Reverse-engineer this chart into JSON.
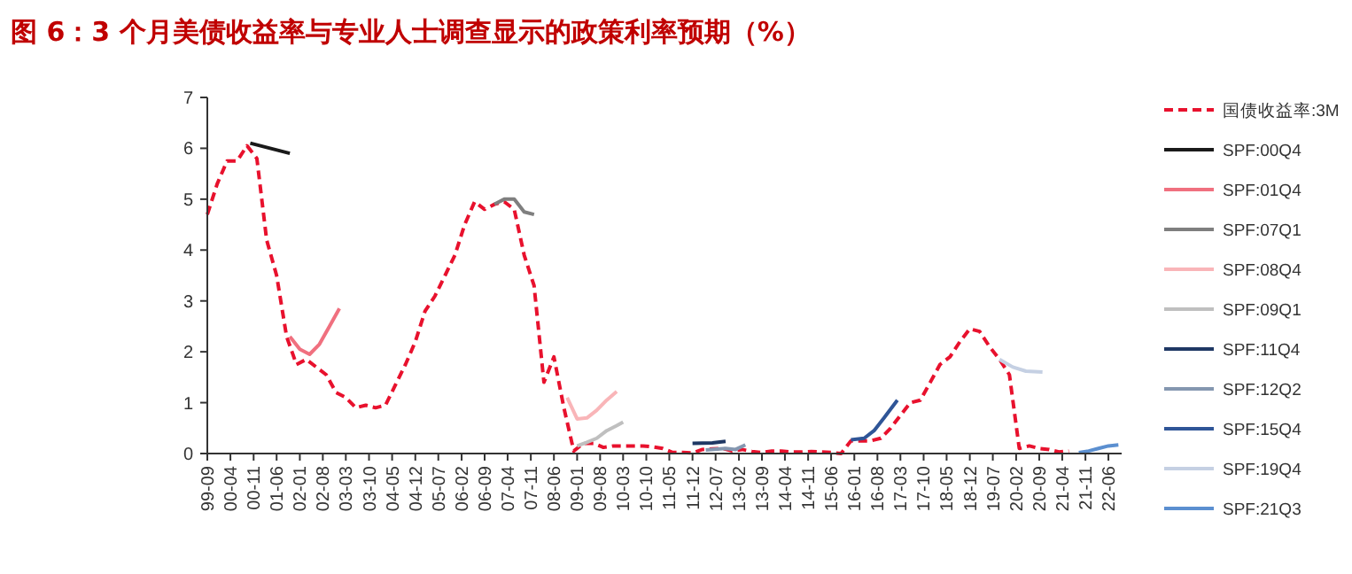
{
  "chart_data": {
    "type": "line",
    "title": "图 6：3 个月美债收益率与专业人士调查显示的政策利率预期（%）",
    "legend": "right",
    "grid": false,
    "marker": "none",
    "xlim": [
      "1999-09",
      "2022-10"
    ],
    "ylim": [
      0,
      7
    ],
    "yticks": [
      0,
      1,
      2,
      3,
      4,
      5,
      6,
      7
    ],
    "xticks": [
      {
        "value": "1999-09",
        "label": "99-09"
      },
      {
        "value": "2000-04",
        "label": "00-04"
      },
      {
        "value": "2000-11",
        "label": "00-11"
      },
      {
        "value": "2001-06",
        "label": "01-06"
      },
      {
        "value": "2002-01",
        "label": "02-01"
      },
      {
        "value": "2002-08",
        "label": "02-08"
      },
      {
        "value": "2003-03",
        "label": "03-03"
      },
      {
        "value": "2003-10",
        "label": "03-10"
      },
      {
        "value": "2004-05",
        "label": "04-05"
      },
      {
        "value": "2004-12",
        "label": "04-12"
      },
      {
        "value": "2005-07",
        "label": "05-07"
      },
      {
        "value": "2006-02",
        "label": "06-02"
      },
      {
        "value": "2006-09",
        "label": "06-09"
      },
      {
        "value": "2007-04",
        "label": "07-04"
      },
      {
        "value": "2007-11",
        "label": "07-11"
      },
      {
        "value": "2008-06",
        "label": "08-06"
      },
      {
        "value": "2009-01",
        "label": "09-01"
      },
      {
        "value": "2009-08",
        "label": "09-08"
      },
      {
        "value": "2010-03",
        "label": "10-03"
      },
      {
        "value": "2010-10",
        "label": "10-10"
      },
      {
        "value": "2011-05",
        "label": "11-05"
      },
      {
        "value": "2011-12",
        "label": "11-12"
      },
      {
        "value": "2012-07",
        "label": "12-07"
      },
      {
        "value": "2013-02",
        "label": "13-02"
      },
      {
        "value": "2013-09",
        "label": "13-09"
      },
      {
        "value": "2014-04",
        "label": "14-04"
      },
      {
        "value": "2014-11",
        "label": "14-11"
      },
      {
        "value": "2015-06",
        "label": "15-06"
      },
      {
        "value": "2016-01",
        "label": "16-01"
      },
      {
        "value": "2016-08",
        "label": "16-08"
      },
      {
        "value": "2017-03",
        "label": "17-03"
      },
      {
        "value": "2017-10",
        "label": "17-10"
      },
      {
        "value": "2018-05",
        "label": "18-05"
      },
      {
        "value": "2018-12",
        "label": "18-12"
      },
      {
        "value": "2019-07",
        "label": "19-07"
      },
      {
        "value": "2020-02",
        "label": "20-02"
      },
      {
        "value": "2020-09",
        "label": "20-09"
      },
      {
        "value": "2021-04",
        "label": "21-04"
      },
      {
        "value": "2021-11",
        "label": "21-11"
      },
      {
        "value": "2022-06",
        "label": "22-06"
      }
    ],
    "series": [
      {
        "name": "国债收益率:3M",
        "color": "#e8112d",
        "line_style": "dashed",
        "x": [
          "1999-09",
          "1999-12",
          "2000-03",
          "2000-06",
          "2000-09",
          "2000-12",
          "2001-03",
          "2001-06",
          "2001-09",
          "2001-12",
          "2002-03",
          "2002-06",
          "2002-09",
          "2002-12",
          "2003-03",
          "2003-06",
          "2003-09",
          "2003-12",
          "2004-03",
          "2004-06",
          "2004-09",
          "2004-12",
          "2005-03",
          "2005-06",
          "2005-09",
          "2005-12",
          "2006-03",
          "2006-06",
          "2006-09",
          "2006-12",
          "2007-03",
          "2007-06",
          "2007-09",
          "2007-12",
          "2008-03",
          "2008-06",
          "2008-09",
          "2008-12",
          "2009-03",
          "2009-06",
          "2009-09",
          "2009-12",
          "2010-03",
          "2010-06",
          "2010-09",
          "2010-12",
          "2011-03",
          "2011-06",
          "2011-09",
          "2011-12",
          "2012-03",
          "2012-06",
          "2012-09",
          "2012-12",
          "2013-03",
          "2013-06",
          "2013-09",
          "2013-12",
          "2014-03",
          "2014-06",
          "2014-09",
          "2014-12",
          "2015-03",
          "2015-06",
          "2015-09",
          "2015-12",
          "2016-03",
          "2016-06",
          "2016-09",
          "2016-12",
          "2017-03",
          "2017-06",
          "2017-09",
          "2017-12",
          "2018-03",
          "2018-06",
          "2018-09",
          "2018-12",
          "2019-03",
          "2019-06",
          "2019-09",
          "2019-12",
          "2020-03",
          "2020-06",
          "2020-09",
          "2020-12",
          "2021-03",
          "2021-06"
        ],
        "values": [
          4.7,
          5.3,
          5.75,
          5.75,
          6.05,
          5.8,
          4.2,
          3.5,
          2.3,
          1.75,
          1.85,
          1.7,
          1.55,
          1.2,
          1.1,
          0.9,
          0.95,
          0.9,
          0.95,
          1.35,
          1.75,
          2.2,
          2.8,
          3.1,
          3.5,
          3.9,
          4.5,
          4.95,
          4.8,
          4.9,
          4.95,
          4.8,
          3.9,
          3.3,
          1.4,
          1.9,
          0.9,
          0.05,
          0.2,
          0.2,
          0.12,
          0.15,
          0.15,
          0.15,
          0.15,
          0.13,
          0.1,
          0.02,
          0.02,
          0.01,
          0.08,
          0.09,
          0.1,
          0.05,
          0.08,
          0.04,
          0.02,
          0.05,
          0.05,
          0.03,
          0.03,
          0.04,
          0.03,
          0.02,
          0.0,
          0.25,
          0.25,
          0.25,
          0.3,
          0.5,
          0.75,
          1.0,
          1.05,
          1.4,
          1.75,
          1.9,
          2.2,
          2.45,
          2.4,
          2.1,
          1.85,
          1.55,
          0.1,
          0.15,
          0.1,
          0.08,
          0.03,
          0.05
        ]
      },
      {
        "name": "SPF:00Q4",
        "color": "#1a1a1a",
        "x": [
          "2000-10",
          "2001-04",
          "2001-10"
        ],
        "values": [
          6.1,
          6.0,
          5.9
        ]
      },
      {
        "name": "SPF:01Q4",
        "color": "#f0707f",
        "x": [
          "2001-10",
          "2002-01",
          "2002-04",
          "2002-07",
          "2002-10",
          "2003-01"
        ],
        "values": [
          2.3,
          2.05,
          1.95,
          2.15,
          2.5,
          2.85
        ]
      },
      {
        "name": "SPF:07Q1",
        "color": "#7f7f7f",
        "x": [
          "2006-12",
          "2007-03",
          "2007-06",
          "2007-09",
          "2007-12"
        ],
        "values": [
          4.9,
          5.0,
          5.0,
          4.75,
          4.7
        ]
      },
      {
        "name": "SPF:08Q4",
        "color": "#f9b5b8",
        "x": [
          "2008-10",
          "2009-01",
          "2009-04",
          "2009-07",
          "2009-10",
          "2010-01"
        ],
        "values": [
          1.1,
          0.68,
          0.7,
          0.85,
          1.05,
          1.22
        ]
      },
      {
        "name": "SPF:09Q1",
        "color": "#bfbfbf",
        "x": [
          "2009-01",
          "2009-04",
          "2009-07",
          "2009-10",
          "2010-01",
          "2010-03"
        ],
        "values": [
          0.15,
          0.22,
          0.3,
          0.45,
          0.55,
          0.62
        ]
      },
      {
        "name": "SPF:11Q4",
        "color": "#1f3864",
        "x": [
          "2011-12",
          "2012-06",
          "2012-10"
        ],
        "values": [
          0.2,
          0.21,
          0.24
        ]
      },
      {
        "name": "SPF:12Q2",
        "color": "#8497b0",
        "x": [
          "2012-04",
          "2012-10",
          "2013-01",
          "2013-04"
        ],
        "values": [
          0.07,
          0.1,
          0.08,
          0.17
        ]
      },
      {
        "name": "SPF:15Q4",
        "color": "#2f5597",
        "x": [
          "2015-12",
          "2016-04",
          "2016-07",
          "2016-10",
          "2017-02"
        ],
        "values": [
          0.27,
          0.3,
          0.45,
          0.7,
          1.05
        ]
      },
      {
        "name": "SPF:19Q4",
        "color": "#c5d0e3",
        "x": [
          "2019-09",
          "2020-01",
          "2020-05",
          "2020-10"
        ],
        "values": [
          1.85,
          1.7,
          1.62,
          1.6
        ]
      },
      {
        "name": "SPF:21Q3",
        "color": "#5b8fd0",
        "x": [
          "2021-09",
          "2021-12",
          "2022-03",
          "2022-06",
          "2022-09"
        ],
        "values": [
          0.02,
          0.05,
          0.1,
          0.15,
          0.17
        ]
      }
    ]
  }
}
